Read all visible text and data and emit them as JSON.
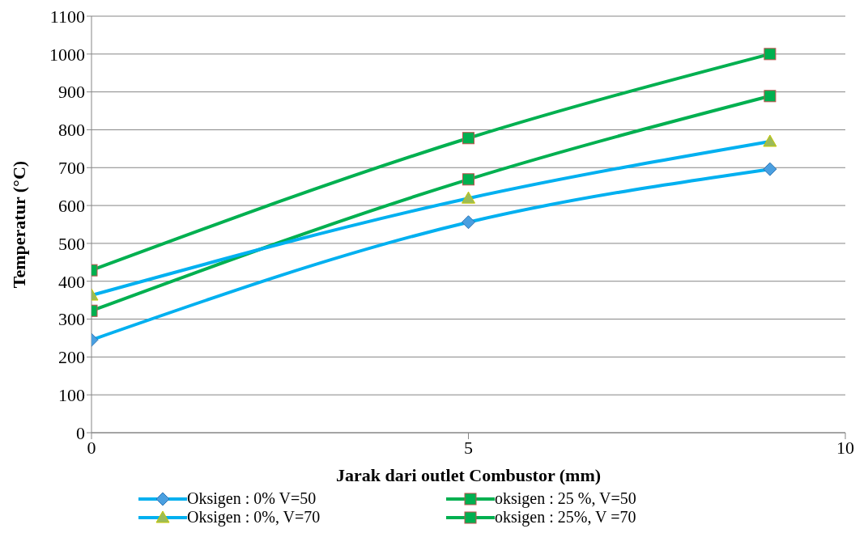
{
  "chart_data": {
    "type": "line",
    "xlabel": "Jarak dari outlet Combustor (mm)",
    "ylabel": "Temperatur (°C)",
    "xlim": [
      0,
      10
    ],
    "xticks": [
      0,
      5,
      10
    ],
    "ylim": [
      0,
      1100
    ],
    "yticks": [
      0,
      100,
      200,
      300,
      400,
      500,
      600,
      700,
      800,
      900,
      1000,
      1100
    ],
    "grid": "y",
    "legend": "bottom",
    "line_style": "solid",
    "x": [
      0,
      5,
      9
    ],
    "series": [
      {
        "name": "Oksigen : 0% V=50",
        "color": "#00b0f0",
        "marker": "diamond",
        "values": [
          245,
          556,
          696
        ]
      },
      {
        "name": "oksigen : 25 %,  V=50",
        "color": "#00b050",
        "marker": "square",
        "values": [
          322,
          669,
          889
        ]
      },
      {
        "name": "Oksigen : 0%,  V=70",
        "color": "#00b0f0",
        "marker": "triangle",
        "values": [
          363,
          619,
          769
        ]
      },
      {
        "name": "oksigen : 25%, V =70",
        "color": "#00b050",
        "marker": "square",
        "values": [
          429,
          778,
          1000
        ]
      }
    ]
  }
}
